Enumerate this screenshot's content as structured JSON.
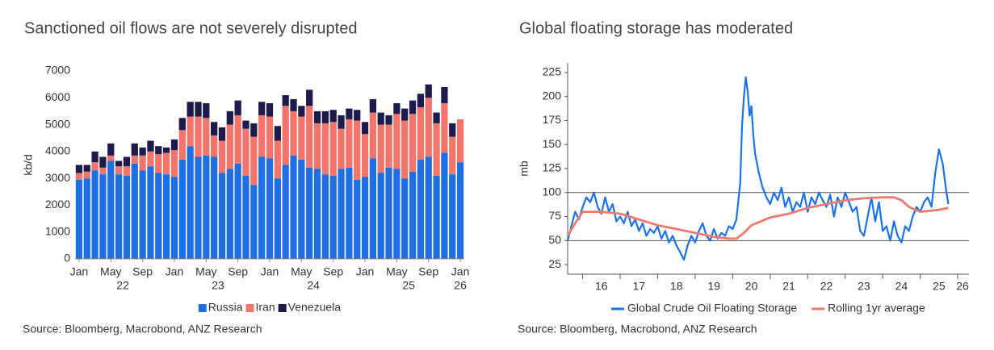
{
  "chart_data": [
    {
      "type": "bar",
      "stacked": true,
      "title": "Sanctioned oil flows are not severely disrupted",
      "y_label": "kb/d",
      "categories": [
        "Jan",
        null,
        null,
        null,
        "May",
        null,
        null,
        null,
        "Sep",
        null,
        null,
        null,
        "Jan",
        null,
        null,
        null,
        "May",
        null,
        null,
        null,
        "Sep",
        null,
        null,
        null,
        "Jan",
        null,
        null,
        null,
        "May",
        null,
        null,
        null,
        "Sep",
        null,
        null,
        null,
        "Jan",
        null,
        null,
        null,
        "May",
        null,
        null,
        null,
        "Sep",
        null,
        null,
        null,
        "Jan"
      ],
      "year_labels": [
        "22",
        "23",
        "24",
        "25",
        "26"
      ],
      "series": [
        {
          "name": "Russia",
          "color": "#1f6fe3",
          "values": [
            2950,
            3000,
            3300,
            3150,
            3650,
            3150,
            3100,
            3550,
            3300,
            3450,
            3200,
            3150,
            3050,
            3700,
            4200,
            3800,
            3850,
            3800,
            3200,
            3350,
            3550,
            3100,
            2750,
            3800,
            3750,
            3000,
            3500,
            3850,
            3700,
            3400,
            3350,
            3150,
            3100,
            3350,
            3400,
            2950,
            3050,
            3750,
            3200,
            3400,
            3350,
            3000,
            3250,
            3700,
            3800,
            3100,
            3950,
            3150,
            3600
          ]
        },
        {
          "name": "Iran",
          "color": "#f2746b",
          "values": [
            250,
            250,
            300,
            250,
            200,
            300,
            350,
            300,
            550,
            550,
            700,
            800,
            1000,
            1100,
            1100,
            1500,
            1400,
            800,
            1200,
            1650,
            1800,
            1750,
            1800,
            1550,
            1550,
            1400,
            2200,
            1650,
            1600,
            2300,
            1700,
            1900,
            2000,
            1500,
            1800,
            2200,
            1600,
            1700,
            1800,
            1600,
            2050,
            2150,
            2150,
            1950,
            2200,
            1950,
            1850,
            1400,
            1600
          ]
        },
        {
          "name": "Venezuela",
          "color": "#1c1b4b",
          "values": [
            300,
            250,
            400,
            400,
            450,
            200,
            350,
            450,
            300,
            400,
            300,
            200,
            400,
            450,
            550,
            550,
            550,
            500,
            500,
            500,
            550,
            300,
            500,
            500,
            500,
            550,
            400,
            450,
            400,
            600,
            450,
            450,
            450,
            500,
            400,
            400,
            450,
            500,
            450,
            350,
            400,
            450,
            500,
            500,
            500,
            400,
            600,
            500,
            0
          ]
        }
      ],
      "ylim": [
        0,
        7000
      ],
      "yticks": [
        0,
        1000,
        2000,
        3000,
        4000,
        5000,
        6000,
        7000
      ],
      "legend": "bottom",
      "source": "Source: Bloomberg, Macrobond, ANZ Research"
    },
    {
      "type": "line",
      "title": "Global floating storage has moderated",
      "y_label": "mb",
      "series": [
        {
          "name": "Global Crude Oil Floating Storage",
          "color": "#1a73e8",
          "x": [
            2015.6,
            2015.7,
            2015.8,
            2015.9,
            2016.0,
            2016.1,
            2016.2,
            2016.3,
            2016.4,
            2016.5,
            2016.6,
            2016.7,
            2016.8,
            2016.9,
            2017.0,
            2017.1,
            2017.2,
            2017.3,
            2017.4,
            2017.5,
            2017.6,
            2017.7,
            2017.8,
            2017.9,
            2018.0,
            2018.1,
            2018.2,
            2018.3,
            2018.4,
            2018.5,
            2018.6,
            2018.7,
            2018.8,
            2018.9,
            2019.0,
            2019.1,
            2019.2,
            2019.3,
            2019.4,
            2019.5,
            2019.6,
            2019.7,
            2019.8,
            2019.9,
            2020.0,
            2020.1,
            2020.2,
            2020.25,
            2020.3,
            2020.35,
            2020.4,
            2020.45,
            2020.5,
            2020.55,
            2020.6,
            2020.7,
            2020.8,
            2020.9,
            2021.0,
            2021.1,
            2021.2,
            2021.3,
            2021.4,
            2021.5,
            2021.6,
            2021.7,
            2021.8,
            2021.9,
            2022.0,
            2022.1,
            2022.2,
            2022.3,
            2022.4,
            2022.5,
            2022.6,
            2022.7,
            2022.8,
            2022.9,
            2023.0,
            2023.1,
            2023.2,
            2023.3,
            2023.4,
            2023.5,
            2023.6,
            2023.7,
            2023.8,
            2023.9,
            2024.0,
            2024.1,
            2024.2,
            2024.3,
            2024.4,
            2024.5,
            2024.6,
            2024.7,
            2024.8,
            2024.9,
            2025.0,
            2025.1,
            2025.2,
            2025.3,
            2025.4,
            2025.5,
            2025.6,
            2025.7,
            2025.75
          ],
          "values": [
            50,
            65,
            80,
            72,
            85,
            95,
            90,
            100,
            85,
            78,
            95,
            80,
            88,
            70,
            75,
            68,
            80,
            65,
            72,
            60,
            68,
            55,
            62,
            58,
            65,
            52,
            60,
            48,
            55,
            45,
            38,
            30,
            45,
            55,
            48,
            60,
            68,
            55,
            50,
            62,
            52,
            58,
            55,
            65,
            62,
            72,
            110,
            170,
            200,
            220,
            205,
            180,
            190,
            160,
            140,
            120,
            105,
            95,
            88,
            100,
            92,
            105,
            85,
            95,
            80,
            90,
            85,
            100,
            80,
            95,
            88,
            100,
            92,
            85,
            98,
            75,
            95,
            85,
            100,
            90,
            80,
            85,
            60,
            55,
            75,
            95,
            70,
            90,
            60,
            65,
            50,
            70,
            55,
            48,
            65,
            60,
            75,
            85,
            80,
            90,
            95,
            85,
            120,
            145,
            130,
            100,
            88
          ]
        },
        {
          "name": "Rolling 1yr average",
          "color": "#f07a70",
          "x": [
            2015.6,
            2015.8,
            2016.0,
            2016.5,
            2017.0,
            2017.5,
            2018.0,
            2018.5,
            2019.0,
            2019.5,
            2019.9,
            2020.1,
            2020.3,
            2020.5,
            2021.0,
            2021.5,
            2022.0,
            2022.5,
            2023.0,
            2023.5,
            2024.0,
            2024.3,
            2024.5,
            2024.7,
            2025.0,
            2025.5,
            2025.75
          ],
          "values": [
            55,
            68,
            80,
            80,
            78,
            72,
            66,
            62,
            58,
            54,
            52,
            52,
            58,
            66,
            74,
            78,
            84,
            88,
            92,
            94,
            95,
            95,
            92,
            85,
            80,
            82,
            84
          ]
        }
      ],
      "xlim": [
        2015.6,
        2026.3
      ],
      "xticks": [
        {
          "value": 2016,
          "label": "16"
        },
        {
          "value": 2017,
          "label": "17"
        },
        {
          "value": 2018,
          "label": "18"
        },
        {
          "value": 2019,
          "label": "19"
        },
        {
          "value": 2020,
          "label": "20"
        },
        {
          "value": 2021,
          "label": "21"
        },
        {
          "value": 2022,
          "label": "22"
        },
        {
          "value": 2023,
          "label": "23"
        },
        {
          "value": 2024,
          "label": "24"
        },
        {
          "value": 2025,
          "label": "25"
        },
        {
          "value": 2026,
          "label": "26"
        }
      ],
      "ylim": [
        15,
        235
      ],
      "yticks": [
        25,
        50,
        75,
        100,
        125,
        150,
        175,
        200,
        225
      ],
      "hlines": [
        50,
        100
      ],
      "legend": "bottom",
      "source": "Source: Bloomberg, Macrobond, ANZ Research"
    }
  ]
}
